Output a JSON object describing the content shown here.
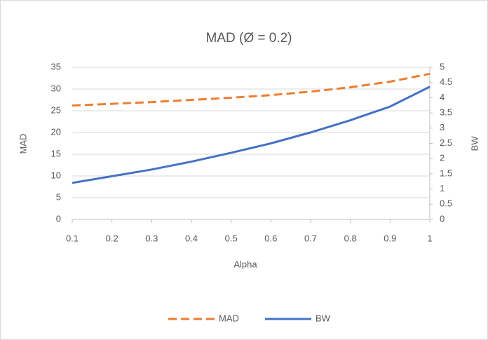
{
  "chart_data": {
    "type": "line",
    "title": "MAD (Ø = 0.2)",
    "x_label": "Alpha",
    "y_label": "MAD",
    "y2_label": "BW",
    "x": [
      0.1,
      0.2,
      0.3,
      0.4,
      0.5,
      0.6,
      0.7,
      0.8,
      0.9,
      1
    ],
    "series": [
      {
        "name": "MAD",
        "color": "#ED7D31",
        "dashed": true,
        "values": [
          26.2,
          26.6,
          27.0,
          27.5,
          28.0,
          28.6,
          29.4,
          30.4,
          31.7,
          33.5
        ]
      },
      {
        "name": "BW",
        "color": "#4472C4",
        "axis": "y2",
        "values": [
          1.2,
          1.42,
          1.64,
          1.9,
          2.19,
          2.5,
          2.86,
          3.26,
          3.71,
          4.36
        ]
      }
    ],
    "xlim": [
      0.1,
      1
    ],
    "xticks": [
      0.1,
      0.2,
      0.3,
      0.4,
      0.5,
      0.6,
      0.7,
      0.8,
      0.9,
      1
    ],
    "ylim": [
      0,
      35
    ],
    "yticks": [
      0,
      5,
      10,
      15,
      20,
      25,
      30,
      35
    ],
    "y2lim": [
      0,
      5
    ],
    "y2ticks": [
      0,
      0.5,
      1,
      1.5,
      2,
      2.5,
      3,
      3.5,
      4,
      4.5,
      5
    ],
    "grid": true,
    "legend": "bottom"
  }
}
